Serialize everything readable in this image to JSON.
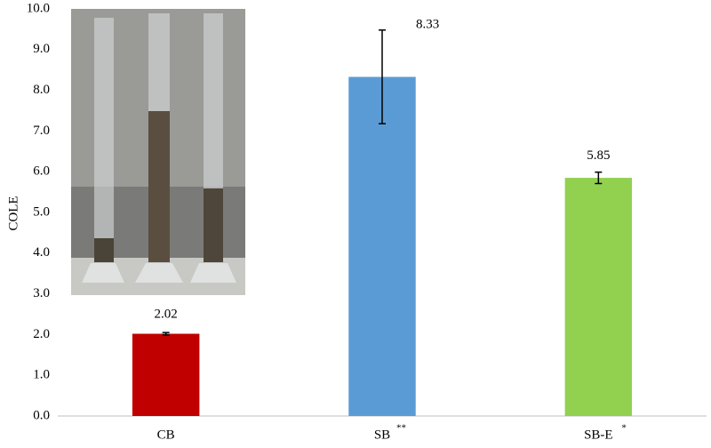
{
  "chart_data": {
    "type": "bar",
    "y_label": "COLE",
    "categories": [
      "CB",
      "SB",
      "SB-E"
    ],
    "significance": [
      null,
      "**",
      "*"
    ],
    "values": [
      2.02,
      8.33,
      5.85
    ],
    "errors": [
      0.03,
      1.15,
      0.14
    ],
    "colors": [
      "#c00000",
      "#5b9bd5",
      "#92d050"
    ],
    "ylim": [
      0,
      10
    ],
    "yticks": [
      {
        "value": 0,
        "label": "0.0"
      },
      {
        "value": 1,
        "label": "1.0"
      },
      {
        "value": 2,
        "label": "2.0"
      },
      {
        "value": 3,
        "label": "3.0"
      },
      {
        "value": 4,
        "label": "4.0"
      },
      {
        "value": 5,
        "label": "5.0"
      },
      {
        "value": 6,
        "label": "6.0"
      },
      {
        "value": 7,
        "label": "7.0"
      },
      {
        "value": 8,
        "label": "8.0"
      },
      {
        "value": 9,
        "label": "9.0"
      },
      {
        "value": 10,
        "label": "10.0"
      }
    ],
    "grid": false
  }
}
